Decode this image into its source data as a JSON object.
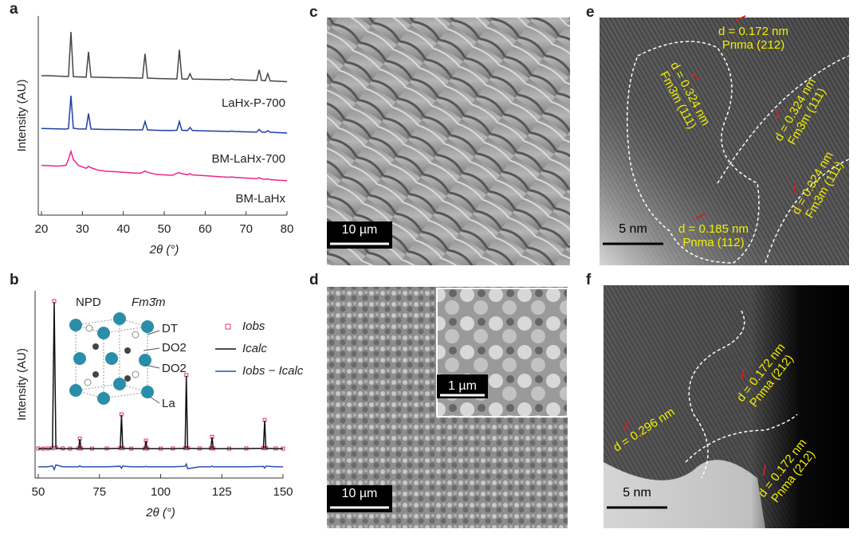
{
  "chart_data": [
    {
      "type": "line",
      "panel_label": "a",
      "x_label": "2θ (°)",
      "y_label": "Intensity (AU)",
      "xlim": [
        20,
        80
      ],
      "xticks": [
        20,
        30,
        40,
        50,
        60,
        70,
        80
      ],
      "ylim": [
        0,
        100
      ],
      "legend": "inline",
      "x": [
        20,
        22,
        24,
        26,
        26.6,
        27.2,
        27.8,
        29,
        30.9,
        31.5,
        32.1,
        34,
        36,
        38,
        40,
        42,
        44,
        44.7,
        45.3,
        45.9,
        48,
        50,
        52,
        53.1,
        53.7,
        54.3,
        55.7,
        56.3,
        56.9,
        60,
        64,
        66,
        66.5,
        67,
        70,
        72.6,
        73.2,
        73.8,
        74.7,
        75.3,
        75.9,
        78,
        80
      ],
      "series": [
        {
          "name": "LaHx-P-700",
          "color": "#454545",
          "values": [
            70,
            70,
            69.8,
            69.6,
            69.6,
            92,
            69.5,
            69.4,
            69.3,
            82,
            69.3,
            69.2,
            69.1,
            69,
            69,
            68.9,
            68.8,
            68.8,
            81,
            68.8,
            68.6,
            68.5,
            68.4,
            68.4,
            83,
            68.4,
            68.3,
            71,
            68.3,
            68.2,
            68,
            68,
            68.5,
            68,
            67.8,
            67.6,
            73,
            67.6,
            67.5,
            71,
            67.4,
            67.2,
            67
          ]
        },
        {
          "name": "BM-LaHx-700",
          "color": "#1e3ea6",
          "values": [
            43.5,
            43.4,
            43.3,
            43.2,
            43.5,
            60,
            43.6,
            43.3,
            43.2,
            51,
            43.2,
            43.1,
            43,
            43,
            42.9,
            42.8,
            42.8,
            42.8,
            47,
            42.8,
            42.6,
            42.5,
            42.5,
            42.6,
            47,
            42.6,
            42.5,
            44,
            42.5,
            42.3,
            42.1,
            42,
            42.2,
            42,
            41.8,
            41.7,
            43,
            41.7,
            41.6,
            42.4,
            41.6,
            41.4,
            41.2
          ]
        },
        {
          "name": "BM-LaHx",
          "color": "#e8288a",
          "values": [
            25,
            24.8,
            24.6,
            25,
            28,
            32,
            28,
            25,
            23.5,
            24.5,
            23.8,
            22.5,
            22,
            21.8,
            21.5,
            21.2,
            21,
            21.5,
            22.2,
            21.5,
            20.5,
            20.2,
            20,
            21,
            21.3,
            20.8,
            20.3,
            20.8,
            20.2,
            19.8,
            19.2,
            19,
            19.2,
            19,
            18.6,
            18.3,
            18.8,
            18.2,
            18,
            18.2,
            17.8,
            17.5,
            17.3
          ]
        }
      ]
    },
    {
      "type": "line",
      "panel_label": "b",
      "x_label": "2θ (°)",
      "y_label": "Intensity (AU)",
      "title": "NPD",
      "subtitle": "Fm3̄m",
      "inset_labels": [
        "DT",
        "DO2",
        "DO2",
        "La"
      ],
      "xlim": [
        50,
        150
      ],
      "xticks": [
        50,
        75,
        100,
        125,
        150
      ],
      "ylim": [
        0,
        100
      ],
      "legend": "upper right",
      "x": [
        50,
        52,
        54,
        55.8,
        56.5,
        57.2,
        60,
        63,
        66.5,
        67,
        67.5,
        72,
        78,
        83.5,
        84,
        84.5,
        88,
        93.5,
        94,
        94.5,
        100,
        105,
        110,
        110.5,
        111,
        116,
        120.5,
        121,
        121.5,
        128,
        135,
        142,
        142.5,
        143,
        147,
        150
      ],
      "series": [
        {
          "name": "Iobs",
          "color": "#e0307a",
          "marker": "square",
          "values": [
            15.8,
            15.7,
            15.8,
            16,
            94.5,
            16.2,
            15.8,
            15.7,
            15.9,
            21,
            15.8,
            15.7,
            15.8,
            16,
            34,
            16,
            15.7,
            15.8,
            20,
            15.8,
            15.7,
            15.8,
            16,
            55,
            16,
            15.8,
            15.9,
            22,
            15.8,
            15.7,
            15.8,
            16,
            31,
            16,
            15.8,
            15.7
          ]
        },
        {
          "name": "Icalc",
          "color": "#111111",
          "values": [
            15.7,
            15.7,
            15.7,
            15.9,
            94,
            16,
            15.7,
            15.7,
            15.8,
            20.8,
            15.7,
            15.7,
            15.7,
            15.9,
            33.8,
            15.9,
            15.7,
            15.7,
            19.9,
            15.7,
            15.7,
            15.7,
            15.9,
            54.6,
            15.9,
            15.7,
            15.8,
            21.8,
            15.7,
            15.7,
            15.7,
            15.9,
            30.7,
            15.9,
            15.7,
            15.7
          ]
        },
        {
          "name": "Iobs − Icalc",
          "color": "#2850b0",
          "values": [
            6,
            6,
            6,
            6.5,
            4.5,
            7,
            6,
            6,
            6,
            6.6,
            6,
            6,
            6,
            6.3,
            5.2,
            6.4,
            6,
            6,
            6.3,
            6,
            6,
            6,
            6.3,
            7.5,
            5,
            6,
            6,
            6.4,
            6,
            6,
            6,
            6.2,
            5.3,
            6.4,
            6,
            6
          ]
        }
      ]
    }
  ],
  "images": [
    {
      "panel_label": "c",
      "scale_bar": "10 µm"
    },
    {
      "panel_label": "d",
      "scale_bar": "10 µm",
      "inset_scale_bar": "1 µm"
    },
    {
      "panel_label": "e",
      "scale_bar": "5 nm",
      "annotations": [
        [
          "d = 0.172 nm",
          "Pnma (212)"
        ],
        [
          "d = 0.324 nm",
          "Fm3m (111)"
        ],
        [
          "d = 0.324 nm",
          "Fm3m (111)"
        ],
        [
          "d = 0.324 nm",
          "Fm3m (111)"
        ],
        [
          "d = 0.185 nm",
          "Pnma (112)"
        ]
      ]
    },
    {
      "panel_label": "f",
      "scale_bar": "5 nm",
      "annotations": [
        [
          "d = 0.296 nm"
        ],
        [
          "d = 0.172 nm",
          "Pnma (212)"
        ],
        [
          "d = 0.172 nm",
          "Pnma (212)"
        ]
      ]
    }
  ]
}
